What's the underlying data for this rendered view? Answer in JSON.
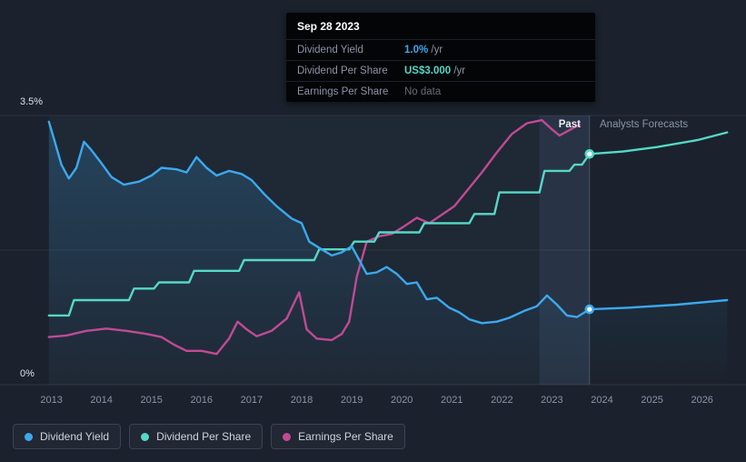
{
  "colors": {
    "dividend_yield": "#3ba9ee",
    "dividend_per_share": "#55d8c7",
    "earnings_per_share": "#c04a94",
    "background": "#1b222d"
  },
  "tooltip": {
    "date": "Sep 28 2023",
    "rows": [
      {
        "label": "Dividend Yield",
        "value": "1.0%",
        "suffix": " /yr",
        "series": "dividend_yield"
      },
      {
        "label": "Dividend Per Share",
        "value": "US$3.000",
        "suffix": " /yr",
        "series": "dividend_per_share"
      },
      {
        "label": "Earnings Per Share",
        "value": "No data",
        "suffix": "",
        "series": "none"
      }
    ]
  },
  "legend": {
    "items": [
      {
        "label": "Dividend Yield",
        "series": "dividend_yield"
      },
      {
        "label": "Dividend Per Share",
        "series": "dividend_per_share"
      },
      {
        "label": "Earnings Per Share",
        "series": "earnings_per_share"
      }
    ]
  },
  "chart_data": {
    "type": "line",
    "past_label": "Past",
    "forecast_label": "Analysts Forecasts",
    "x_range": [
      2012.3,
      2026.55
    ],
    "y_range": [
      0,
      3.5
    ],
    "y_gridlines": [
      3.5,
      1.75
    ],
    "y_tick_labels": [
      {
        "value": 3.5,
        "label": "3.5%"
      },
      {
        "value": 0,
        "label": "0%"
      }
    ],
    "x_ticks": [
      2013,
      2014,
      2015,
      2016,
      2017,
      2018,
      2019,
      2020,
      2021,
      2022,
      2023,
      2024,
      2025,
      2026
    ],
    "divider_x": 2023.75,
    "highlight_band": [
      2022.75,
      2023.75
    ],
    "series": [
      {
        "name": "Dividend Yield",
        "key": "dividend_yield",
        "unit": "%/yr",
        "current_value": "1.0% /yr",
        "points": [
          [
            2012.95,
            3.42
          ],
          [
            2013.05,
            3.2
          ],
          [
            2013.2,
            2.86
          ],
          [
            2013.35,
            2.68
          ],
          [
            2013.5,
            2.82
          ],
          [
            2013.65,
            3.16
          ],
          [
            2013.8,
            3.05
          ],
          [
            2014.0,
            2.88
          ],
          [
            2014.2,
            2.7
          ],
          [
            2014.45,
            2.6
          ],
          [
            2014.75,
            2.64
          ],
          [
            2015.0,
            2.72
          ],
          [
            2015.2,
            2.82
          ],
          [
            2015.5,
            2.8
          ],
          [
            2015.7,
            2.76
          ],
          [
            2015.9,
            2.96
          ],
          [
            2016.1,
            2.82
          ],
          [
            2016.3,
            2.72
          ],
          [
            2016.55,
            2.78
          ],
          [
            2016.8,
            2.74
          ],
          [
            2017.0,
            2.66
          ],
          [
            2017.25,
            2.48
          ],
          [
            2017.5,
            2.32
          ],
          [
            2017.8,
            2.16
          ],
          [
            2018.0,
            2.1
          ],
          [
            2018.15,
            1.86
          ],
          [
            2018.4,
            1.76
          ],
          [
            2018.6,
            1.68
          ],
          [
            2018.8,
            1.72
          ],
          [
            2019.0,
            1.8
          ],
          [
            2019.15,
            1.62
          ],
          [
            2019.3,
            1.44
          ],
          [
            2019.5,
            1.46
          ],
          [
            2019.7,
            1.53
          ],
          [
            2019.9,
            1.44
          ],
          [
            2020.1,
            1.31
          ],
          [
            2020.3,
            1.33
          ],
          [
            2020.5,
            1.11
          ],
          [
            2020.7,
            1.13
          ],
          [
            2020.95,
            1.0
          ],
          [
            2021.15,
            0.94
          ],
          [
            2021.35,
            0.85
          ],
          [
            2021.6,
            0.8
          ],
          [
            2021.9,
            0.82
          ],
          [
            2022.15,
            0.87
          ],
          [
            2022.45,
            0.96
          ],
          [
            2022.7,
            1.02
          ],
          [
            2022.9,
            1.16
          ],
          [
            2023.1,
            1.04
          ],
          [
            2023.3,
            0.9
          ],
          [
            2023.5,
            0.88
          ],
          [
            2023.75,
            0.98
          ]
        ],
        "forecast_points": [
          [
            2023.75,
            0.98
          ],
          [
            2024.5,
            1.0
          ],
          [
            2025.5,
            1.04
          ],
          [
            2026.5,
            1.1
          ]
        ],
        "marker": [
          2023.75,
          0.98
        ]
      },
      {
        "name": "Dividend Per Share",
        "key": "dividend_per_share",
        "unit": "US$/yr",
        "current_value": "US$3.000 /yr",
        "points": [
          [
            2012.95,
            0.9
          ],
          [
            2013.35,
            0.9
          ],
          [
            2013.45,
            1.1
          ],
          [
            2014.55,
            1.1
          ],
          [
            2014.65,
            1.25
          ],
          [
            2015.05,
            1.25
          ],
          [
            2015.15,
            1.33
          ],
          [
            2015.75,
            1.33
          ],
          [
            2015.85,
            1.48
          ],
          [
            2016.75,
            1.48
          ],
          [
            2016.85,
            1.62
          ],
          [
            2018.25,
            1.62
          ],
          [
            2018.35,
            1.76
          ],
          [
            2018.95,
            1.76
          ],
          [
            2019.05,
            1.86
          ],
          [
            2019.45,
            1.86
          ],
          [
            2019.55,
            1.98
          ],
          [
            2020.35,
            1.98
          ],
          [
            2020.45,
            2.1
          ],
          [
            2021.35,
            2.1
          ],
          [
            2021.45,
            2.22
          ],
          [
            2021.85,
            2.22
          ],
          [
            2021.95,
            2.5
          ],
          [
            2022.75,
            2.5
          ],
          [
            2022.85,
            2.78
          ],
          [
            2023.35,
            2.78
          ],
          [
            2023.45,
            2.86
          ],
          [
            2023.6,
            2.86
          ],
          [
            2023.75,
            3.0
          ]
        ],
        "forecast_points": [
          [
            2023.75,
            3.0
          ],
          [
            2024.4,
            3.03
          ],
          [
            2025.1,
            3.09
          ],
          [
            2025.9,
            3.18
          ],
          [
            2026.5,
            3.28
          ]
        ],
        "marker": [
          2023.75,
          3.0
        ]
      },
      {
        "name": "Earnings Per Share",
        "key": "earnings_per_share",
        "unit": "US$/yr",
        "current_value": "No data",
        "points": [
          [
            2012.95,
            0.62
          ],
          [
            2013.3,
            0.64
          ],
          [
            2013.7,
            0.7
          ],
          [
            2014.1,
            0.73
          ],
          [
            2014.5,
            0.7
          ],
          [
            2014.9,
            0.66
          ],
          [
            2015.2,
            0.62
          ],
          [
            2015.45,
            0.52
          ],
          [
            2015.7,
            0.44
          ],
          [
            2016.0,
            0.44
          ],
          [
            2016.3,
            0.4
          ],
          [
            2016.55,
            0.6
          ],
          [
            2016.72,
            0.82
          ],
          [
            2016.9,
            0.72
          ],
          [
            2017.1,
            0.63
          ],
          [
            2017.4,
            0.7
          ],
          [
            2017.7,
            0.86
          ],
          [
            2017.95,
            1.2
          ],
          [
            2018.1,
            0.72
          ],
          [
            2018.3,
            0.6
          ],
          [
            2018.6,
            0.58
          ],
          [
            2018.8,
            0.66
          ],
          [
            2018.95,
            0.82
          ],
          [
            2019.1,
            1.4
          ],
          [
            2019.3,
            1.86
          ],
          [
            2019.55,
            1.93
          ],
          [
            2019.8,
            1.96
          ],
          [
            2020.05,
            2.06
          ],
          [
            2020.3,
            2.17
          ],
          [
            2020.55,
            2.1
          ],
          [
            2020.8,
            2.21
          ],
          [
            2021.05,
            2.32
          ],
          [
            2021.3,
            2.52
          ],
          [
            2021.6,
            2.76
          ],
          [
            2021.9,
            3.02
          ],
          [
            2022.2,
            3.26
          ],
          [
            2022.5,
            3.4
          ],
          [
            2022.8,
            3.44
          ],
          [
            2023.0,
            3.32
          ],
          [
            2023.15,
            3.24
          ],
          [
            2023.35,
            3.31
          ],
          [
            2023.55,
            3.38
          ]
        ]
      }
    ]
  }
}
